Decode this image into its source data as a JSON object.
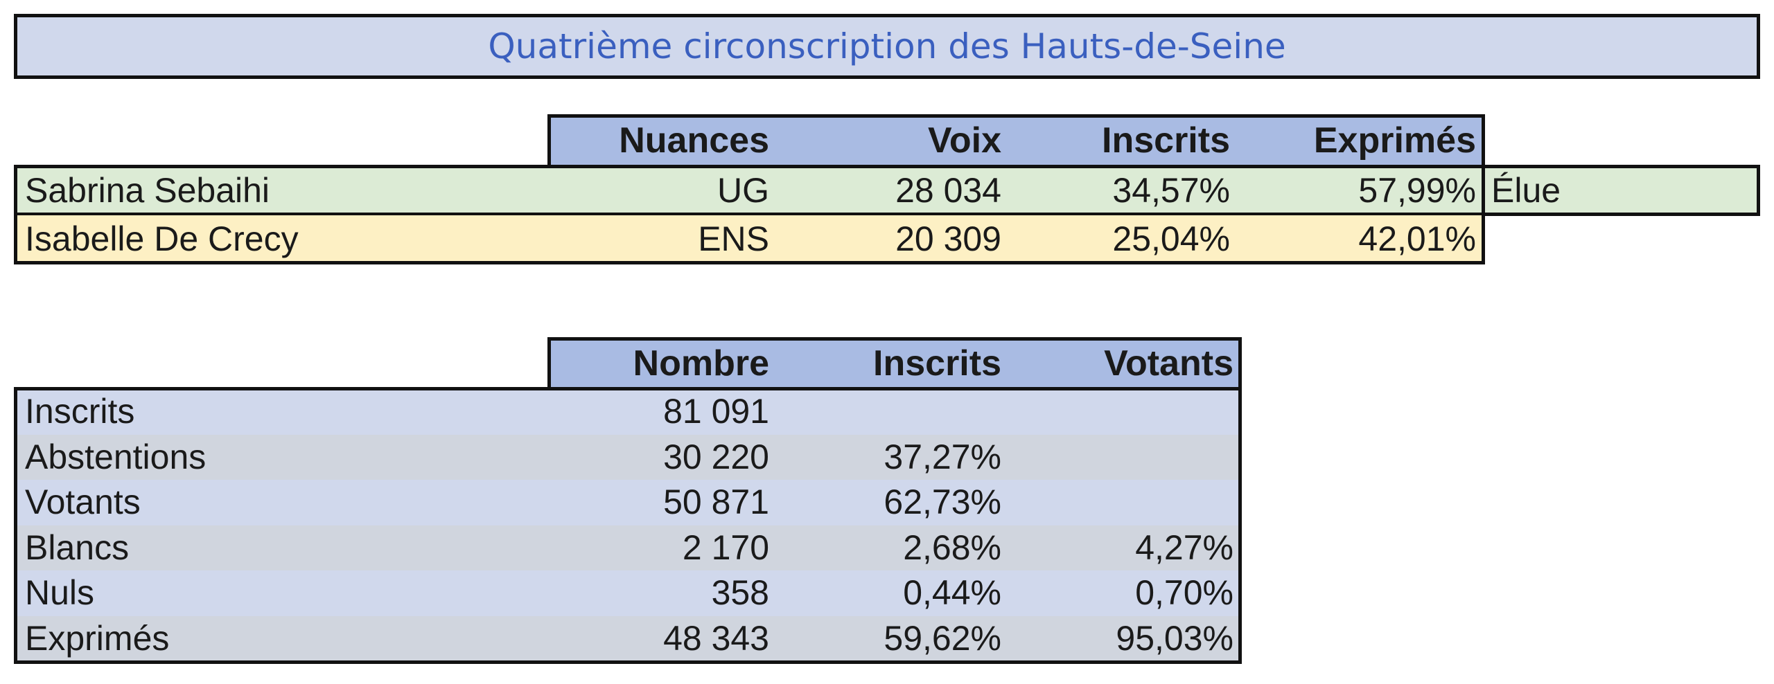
{
  "title": "Quatrième circonscription des Hauts-de-Seine",
  "candidates_table": {
    "headers": [
      "Nuances",
      "Voix",
      "Inscrits",
      "Exprimés"
    ],
    "rows": [
      {
        "name": "Sabrina Sebaihi",
        "nuance": "UG",
        "voix": "28 034",
        "inscrits": "34,57%",
        "exprimes": "57,99%",
        "note": "Élue",
        "color": "#dcebd5"
      },
      {
        "name": "Isabelle De Crecy",
        "nuance": "ENS",
        "voix": "20 309",
        "inscrits": "25,04%",
        "exprimes": "42,01%",
        "note": "",
        "color": "#fdf0c4"
      }
    ]
  },
  "stats_table": {
    "headers": [
      "Nombre",
      "Inscrits",
      "Votants"
    ],
    "rows": [
      {
        "label": "Inscrits",
        "nombre": "81 091",
        "inscrits": "",
        "votants": ""
      },
      {
        "label": "Abstentions",
        "nombre": "30 220",
        "inscrits": "37,27%",
        "votants": ""
      },
      {
        "label": "Votants",
        "nombre": "50 871",
        "inscrits": "62,73%",
        "votants": ""
      },
      {
        "label": "Blancs",
        "nombre": "2 170",
        "inscrits": "2,68%",
        "votants": "4,27%"
      },
      {
        "label": "Nuls",
        "nombre": "358",
        "inscrits": "0,44%",
        "votants": "0,70%"
      },
      {
        "label": "Exprimés",
        "nombre": "48 343",
        "inscrits": "59,62%",
        "votants": "95,03%"
      }
    ]
  },
  "colors": {
    "header_blue": "#a9bbe3",
    "title_text": "#3a5fbf",
    "title_bg": "#d0d8ec",
    "stripe_blue": "#d0d8ec",
    "stripe_gray": "#d0d5de"
  }
}
